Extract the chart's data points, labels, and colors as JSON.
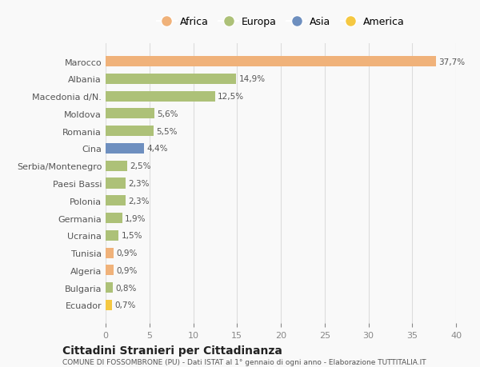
{
  "countries": [
    "Marocco",
    "Albania",
    "Macedonia d/N.",
    "Moldova",
    "Romania",
    "Cina",
    "Serbia/Montenegro",
    "Paesi Bassi",
    "Polonia",
    "Germania",
    "Ucraina",
    "Tunisia",
    "Algeria",
    "Bulgaria",
    "Ecuador"
  ],
  "values": [
    37.7,
    14.9,
    12.5,
    5.6,
    5.5,
    4.4,
    2.5,
    2.3,
    2.3,
    1.9,
    1.5,
    0.9,
    0.9,
    0.8,
    0.7
  ],
  "labels": [
    "37,7%",
    "14,9%",
    "12,5%",
    "5,6%",
    "5,5%",
    "4,4%",
    "2,5%",
    "2,3%",
    "2,3%",
    "1,9%",
    "1,5%",
    "0,9%",
    "0,9%",
    "0,8%",
    "0,7%"
  ],
  "colors": [
    "#f0b27a",
    "#adc178",
    "#adc178",
    "#adc178",
    "#adc178",
    "#6e8fbf",
    "#adc178",
    "#adc178",
    "#adc178",
    "#adc178",
    "#adc178",
    "#f0b27a",
    "#f0b27a",
    "#adc178",
    "#f5c842"
  ],
  "continent_colors": {
    "Africa": "#f0b27a",
    "Europa": "#adc178",
    "Asia": "#6e8fbf",
    "America": "#f5c842"
  },
  "legend_labels": [
    "Africa",
    "Europa",
    "Asia",
    "America"
  ],
  "xlim": [
    0,
    40
  ],
  "xticks": [
    0,
    5,
    10,
    15,
    20,
    25,
    30,
    35,
    40
  ],
  "title": "Cittadini Stranieri per Cittadinanza",
  "subtitle": "COMUNE DI FOSSOMBRONE (PU) - Dati ISTAT al 1° gennaio di ogni anno - Elaborazione TUTTITALIA.IT",
  "bg_color": "#f9f9f9",
  "grid_color": "#dddddd"
}
